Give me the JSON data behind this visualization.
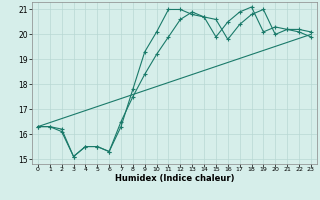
{
  "xlabel": "Humidex (Indice chaleur)",
  "xlim": [
    -0.5,
    23.5
  ],
  "ylim": [
    14.8,
    21.3
  ],
  "yticks": [
    15,
    16,
    17,
    18,
    19,
    20,
    21
  ],
  "xticks": [
    0,
    1,
    2,
    3,
    4,
    5,
    6,
    7,
    8,
    9,
    10,
    11,
    12,
    13,
    14,
    15,
    16,
    17,
    18,
    19,
    20,
    21,
    22,
    23
  ],
  "bg_color": "#d6eeea",
  "grid_color": "#b8d8d4",
  "line_color": "#1a7a6a",
  "line1_x": [
    0,
    1,
    2,
    3,
    4,
    5,
    6,
    7,
    8,
    9,
    10,
    11,
    12,
    13,
    14,
    15,
    16,
    17,
    18,
    19,
    20,
    21,
    22,
    23
  ],
  "line1_y": [
    16.3,
    16.3,
    16.1,
    15.1,
    15.5,
    15.5,
    15.3,
    16.3,
    17.8,
    19.3,
    20.1,
    21.0,
    21.0,
    20.8,
    20.7,
    19.9,
    20.5,
    20.9,
    21.1,
    20.1,
    20.3,
    20.2,
    20.2,
    20.1
  ],
  "line2_x": [
    0,
    1,
    2,
    3,
    4,
    5,
    6,
    7,
    8,
    9,
    10,
    11,
    12,
    13,
    14,
    15,
    16,
    17,
    18,
    19,
    20,
    21,
    22,
    23
  ],
  "line2_y": [
    16.3,
    16.3,
    16.2,
    15.1,
    15.5,
    15.5,
    15.3,
    16.5,
    17.5,
    18.4,
    19.2,
    19.9,
    20.6,
    20.9,
    20.7,
    20.6,
    19.8,
    20.4,
    20.8,
    21.0,
    20.0,
    20.2,
    20.1,
    19.9
  ],
  "line3_x": [
    0,
    23
  ],
  "line3_y": [
    16.3,
    20.0
  ]
}
